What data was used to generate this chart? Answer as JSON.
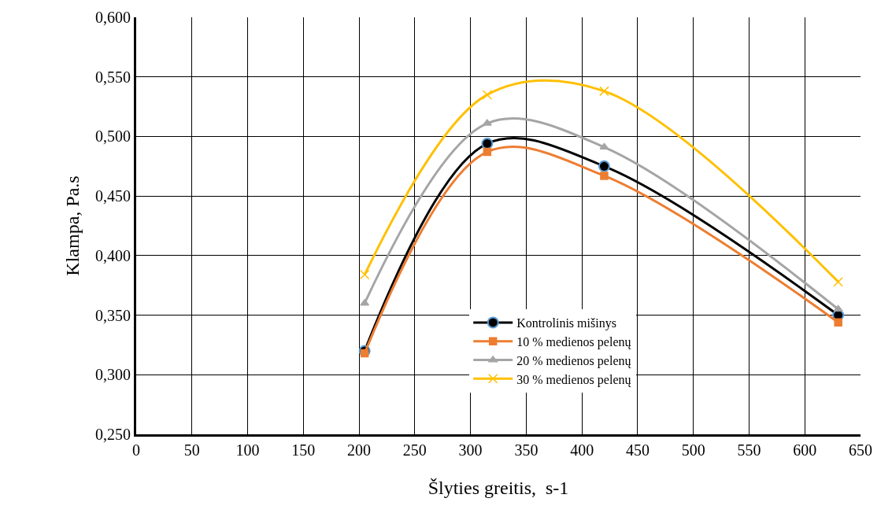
{
  "chart_data": {
    "type": "line",
    "xlabel": "Šlyties greitis,  s-1",
    "ylabel": "Klampa, Pa.s",
    "x": [
      205,
      315,
      420,
      630
    ],
    "series": [
      {
        "name": "Kontrolinis mišinys",
        "color": "#000000",
        "marker": "circle",
        "values": [
          0.32,
          0.494,
          0.475,
          0.35
        ]
      },
      {
        "name": "10 % medienos pelenų",
        "color": "#ed7d31",
        "marker": "square",
        "values": [
          0.318,
          0.487,
          0.467,
          0.344
        ]
      },
      {
        "name": "20 % medienos pelenų",
        "color": "#a5a5a5",
        "marker": "triangle",
        "values": [
          0.36,
          0.511,
          0.491,
          0.355
        ]
      },
      {
        "name": "30 % medienos pelenų",
        "color": "#ffc000",
        "marker": "cross",
        "values": [
          0.384,
          0.535,
          0.538,
          0.378
        ]
      }
    ],
    "xlim": [
      0,
      650
    ],
    "xticks": [
      0,
      50,
      100,
      150,
      200,
      250,
      300,
      350,
      400,
      450,
      500,
      550,
      600,
      650
    ],
    "ylim": [
      0.25,
      0.6
    ],
    "yticks": [
      {
        "value": 0.25,
        "label": "0,250"
      },
      {
        "value": 0.3,
        "label": "0,300"
      },
      {
        "value": 0.35,
        "label": "0,350"
      },
      {
        "value": 0.4,
        "label": "0,400"
      },
      {
        "value": 0.45,
        "label": "0,450"
      },
      {
        "value": 0.5,
        "label": "0,500"
      },
      {
        "value": 0.55,
        "label": "0,550"
      },
      {
        "value": 0.6,
        "label": "0,600"
      }
    ],
    "grid": true,
    "legend": "bottom right",
    "line_style": "solid"
  }
}
